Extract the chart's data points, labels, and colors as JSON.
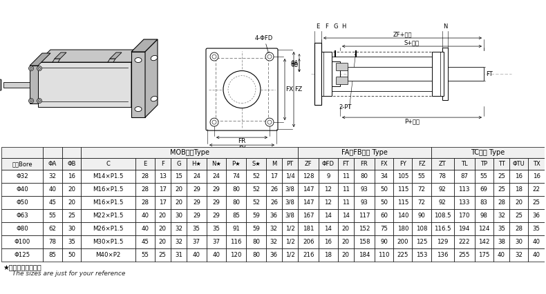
{
  "header_row1_spans": [
    {
      "label": "",
      "start": 0,
      "end": 0
    },
    {
      "label": "",
      "start": 1,
      "end": 1
    },
    {
      "label": "",
      "start": 2,
      "end": 2
    },
    {
      "label": "MOB型式Type",
      "start": 3,
      "end": 12
    },
    {
      "label": "FA、FB型式 Type",
      "start": 13,
      "end": 19
    },
    {
      "label": "TC型式 Type",
      "start": 20,
      "end": 25
    }
  ],
  "header_row2": [
    "缸径Bore",
    "ΦA",
    "ΦB",
    "C",
    "E",
    "F",
    "G",
    "H★",
    "N★",
    "P★",
    "S★",
    "M",
    "PT",
    "ZF",
    "ΦFD",
    "FT",
    "FR",
    "FX",
    "FY",
    "FZ",
    "ZT",
    "TL",
    "TP",
    "TT",
    "ΦTU",
    "TX"
  ],
  "rows": [
    [
      "Φ32",
      "32",
      "16",
      "M14×P1.5",
      "28",
      "13",
      "15",
      "24",
      "24",
      "74",
      "52",
      "17",
      "1/4",
      "128",
      "9",
      "11",
      "80",
      "34",
      "105",
      "55",
      "78",
      "87",
      "55",
      "25",
      "16",
      "16"
    ],
    [
      "Φ40",
      "40",
      "20",
      "M16×P1.5",
      "28",
      "17",
      "20",
      "29",
      "29",
      "80",
      "52",
      "26",
      "3/8",
      "147",
      "12",
      "11",
      "93",
      "50",
      "115",
      "72",
      "92",
      "113",
      "69",
      "25",
      "18",
      "22"
    ],
    [
      "Φ50",
      "45",
      "20",
      "M16×P1.5",
      "28",
      "17",
      "20",
      "29",
      "29",
      "80",
      "52",
      "26",
      "3/8",
      "147",
      "12",
      "11",
      "93",
      "50",
      "115",
      "72",
      "92",
      "133",
      "83",
      "28",
      "20",
      "25"
    ],
    [
      "Φ63",
      "55",
      "25",
      "M22×P1.5",
      "40",
      "20",
      "30",
      "29",
      "29",
      "85",
      "59",
      "36",
      "3/8",
      "167",
      "14",
      "14",
      "117",
      "60",
      "140",
      "90",
      "108.5",
      "170",
      "98",
      "32",
      "25",
      "36"
    ],
    [
      "Φ80",
      "62",
      "30",
      "M26×P1.5",
      "40",
      "20",
      "32",
      "35",
      "35",
      "91",
      "59",
      "32",
      "1/2",
      "181",
      "14",
      "20",
      "152",
      "75",
      "180",
      "108",
      "116.5",
      "194",
      "124",
      "35",
      "28",
      "35"
    ],
    [
      "Φ100",
      "78",
      "35",
      "M30×P1.5",
      "45",
      "20",
      "32",
      "37",
      "37",
      "116",
      "80",
      "32",
      "1/2",
      "206",
      "16",
      "20",
      "158",
      "90",
      "200",
      "125",
      "129",
      "222",
      "142",
      "38",
      "30",
      "40"
    ],
    [
      "Φ125",
      "85",
      "50",
      "M40×P2",
      "55",
      "25",
      "31",
      "40",
      "40",
      "120",
      "80",
      "36",
      "1/2",
      "216",
      "18",
      "20",
      "184",
      "110",
      "225",
      "153",
      "136",
      "255",
      "175",
      "40",
      "32",
      "40"
    ]
  ],
  "note1": "★标尺寸仅供参考。",
  "note2": "  The sizes are just for your reference",
  "col_weights": [
    2.2,
    1.0,
    1.0,
    2.9,
    1.0,
    0.85,
    0.85,
    1.05,
    1.05,
    1.05,
    1.05,
    0.85,
    0.85,
    1.1,
    1.0,
    0.85,
    1.1,
    1.0,
    1.0,
    1.0,
    1.2,
    1.1,
    1.0,
    0.85,
    1.0,
    0.85
  ],
  "background_color": "#ffffff"
}
